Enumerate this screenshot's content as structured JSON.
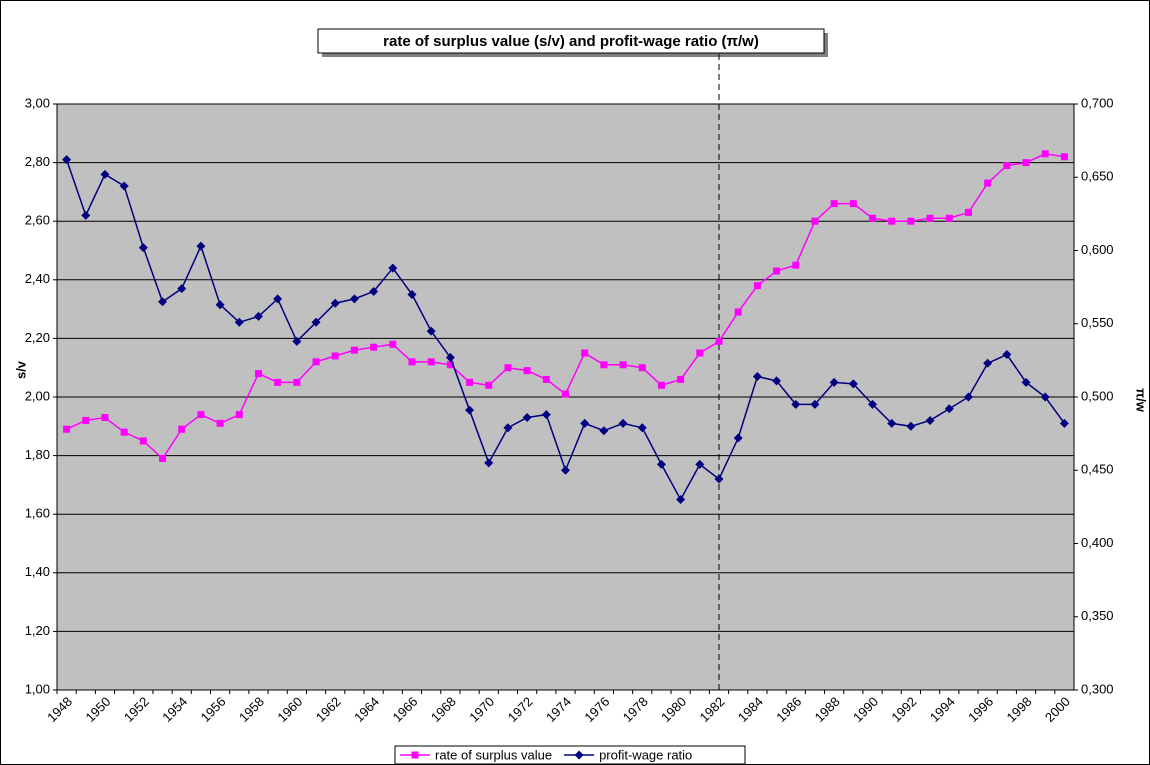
{
  "chart_data": {
    "type": "line",
    "title": "rate of surplus value (s/v) and profit-wage ratio (π/w)",
    "y_label": "s/v",
    "y2_label": "π/w",
    "categories": [
      "1948",
      null,
      "1950",
      null,
      "1952",
      null,
      "1954",
      null,
      "1956",
      null,
      "1958",
      null,
      "1960",
      null,
      "1962",
      null,
      "1964",
      null,
      "1966",
      null,
      "1968",
      null,
      "1970",
      null,
      "1972",
      null,
      "1974",
      null,
      "1976",
      null,
      "1978",
      null,
      "1980",
      null,
      "1982",
      null,
      "1984",
      null,
      "1986",
      null,
      "1988",
      null,
      "1990",
      null,
      "1992",
      null,
      "1994",
      null,
      "1996",
      null,
      "1998",
      null,
      "2000"
    ],
    "series": [
      {
        "name": "rate of surplus value",
        "color": "#ff00ff",
        "marker": "square",
        "values": [
          1.89,
          1.92,
          1.93,
          1.88,
          1.85,
          1.79,
          1.89,
          1.94,
          1.91,
          1.94,
          2.08,
          2.05,
          2.05,
          2.12,
          2.14,
          2.16,
          2.17,
          2.18,
          2.12,
          2.12,
          2.11,
          2.05,
          2.04,
          2.1,
          2.09,
          2.06,
          2.01,
          2.15,
          2.11,
          2.11,
          2.1,
          2.04,
          2.06,
          2.15,
          2.19,
          2.29,
          2.38,
          2.43,
          2.45,
          2.6,
          2.66,
          2.66,
          2.61,
          2.6,
          2.6,
          2.61,
          2.61,
          2.63,
          2.73,
          2.79,
          2.8,
          2.83,
          2.82
        ]
      },
      {
        "name": "profit-wage ratio",
        "color": "#000080",
        "marker": "diamond",
        "axis": "y2",
        "values": [
          0.662,
          0.624,
          0.652,
          0.644,
          0.602,
          0.565,
          0.574,
          0.603,
          0.563,
          0.551,
          0.555,
          0.567,
          0.538,
          0.551,
          0.564,
          0.567,
          0.572,
          0.588,
          0.57,
          0.545,
          0.527,
          0.491,
          0.455,
          0.479,
          0.486,
          0.488,
          0.45,
          0.482,
          0.477,
          0.482,
          0.479,
          0.454,
          0.43,
          0.454,
          0.444,
          0.472,
          0.514,
          0.511,
          0.495,
          0.495,
          0.51,
          0.509,
          0.495,
          0.482,
          0.48,
          0.484,
          0.492,
          0.5,
          0.523,
          0.529,
          0.51,
          0.5,
          0.482
        ]
      }
    ],
    "ylim": [
      1,
      3
    ],
    "yticks": [
      {
        "value": 1,
        "label": "1,00"
      },
      {
        "value": 1.2,
        "label": "1,20"
      },
      {
        "value": 1.4,
        "label": "1,40"
      },
      {
        "value": 1.6,
        "label": "1,60"
      },
      {
        "value": 1.8,
        "label": "1,80"
      },
      {
        "value": 2,
        "label": "2,00"
      },
      {
        "value": 2.2,
        "label": "2,20"
      },
      {
        "value": 2.4,
        "label": "2,40"
      },
      {
        "value": 2.6,
        "label": "2,60"
      },
      {
        "value": 2.8,
        "label": "2,80"
      },
      {
        "value": 3,
        "label": "3,00"
      }
    ],
    "y2lim": [
      0.3,
      0.7
    ],
    "y2ticks": [
      {
        "value": 0.3,
        "label": "0,300"
      },
      {
        "value": 0.35,
        "label": "0,350"
      },
      {
        "value": 0.4,
        "label": "0,400"
      },
      {
        "value": 0.45,
        "label": "0,450"
      },
      {
        "value": 0.5,
        "label": "0,500"
      },
      {
        "value": 0.55,
        "label": "0,550"
      },
      {
        "value": 0.6,
        "label": "0,600"
      },
      {
        "value": 0.65,
        "label": "0,650"
      },
      {
        "value": 0.7,
        "label": "0,700"
      }
    ],
    "grid": true,
    "vline_category": "1982",
    "legend": "bottom"
  }
}
